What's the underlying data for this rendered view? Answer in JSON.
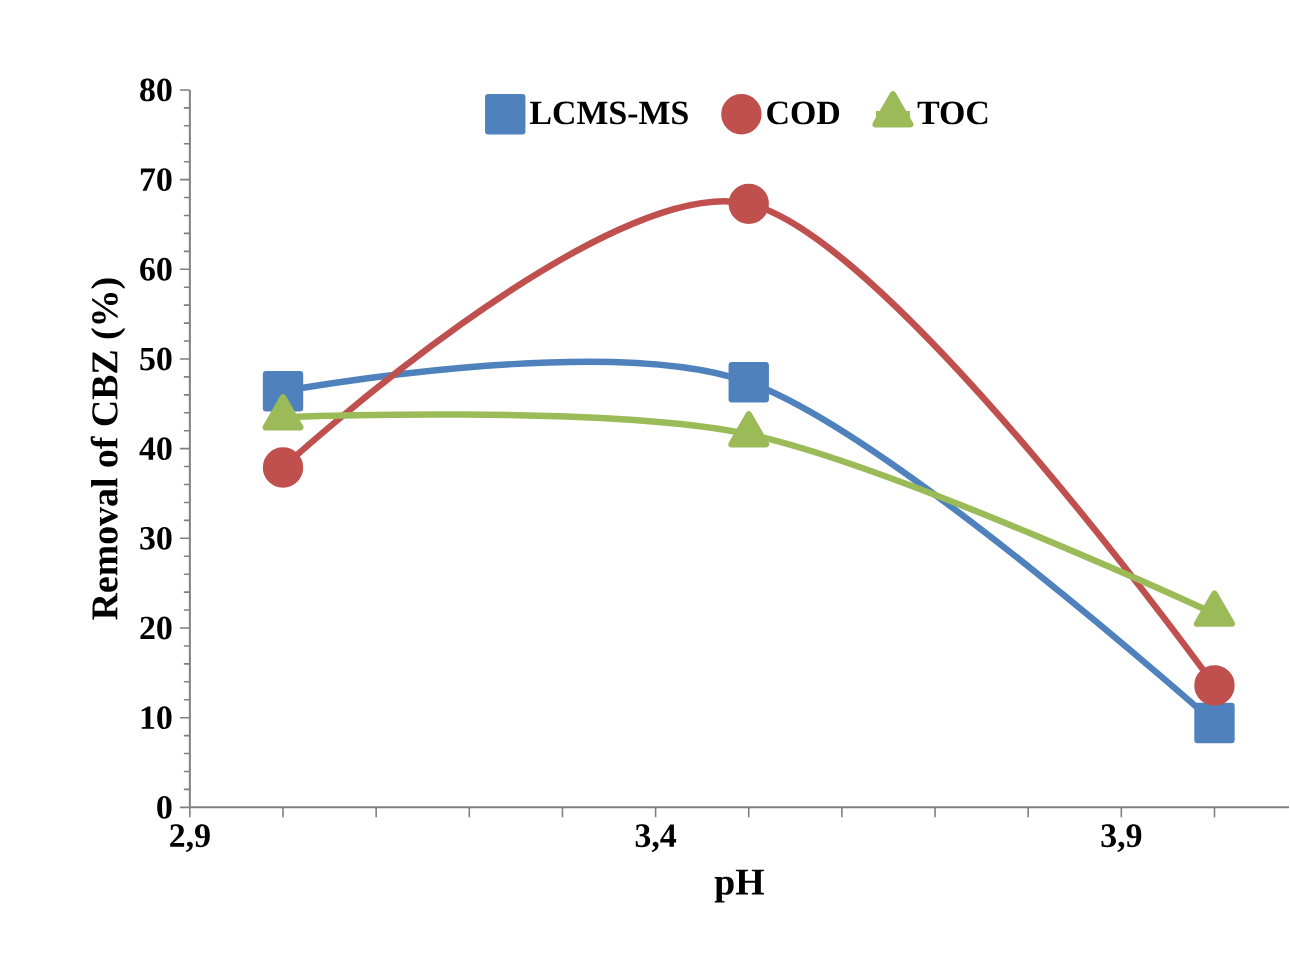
{
  "chart_data": {
    "type": "line",
    "xlabel": "pH",
    "ylabel": "Removal of CBZ (%)",
    "x": [
      3.0,
      3.5,
      4.0
    ],
    "series": [
      {
        "name": "LCMS-MS",
        "color": "#4f81bd",
        "marker": "square",
        "values": [
          46.4,
          47.4,
          9.4
        ]
      },
      {
        "name": "COD",
        "color": "#c0504d",
        "marker": "circle",
        "values": [
          37.9,
          67.3,
          13.6
        ]
      },
      {
        "name": "TOC",
        "color": "#9bbb59",
        "marker": "triangle",
        "values": [
          43.5,
          41.6,
          21.6
        ]
      }
    ],
    "xlim": [
      2.9,
      4.08
    ],
    "ylim": [
      0,
      80
    ],
    "xticks": [
      {
        "value": 2.9,
        "label": "2,9"
      },
      {
        "value": 3.0,
        "label": null
      },
      {
        "value": 3.1,
        "label": null
      },
      {
        "value": 3.2,
        "label": null
      },
      {
        "value": 3.3,
        "label": null
      },
      {
        "value": 3.4,
        "label": "3,4"
      },
      {
        "value": 3.5,
        "label": null
      },
      {
        "value": 3.6,
        "label": null
      },
      {
        "value": 3.7,
        "label": null
      },
      {
        "value": 3.8,
        "label": null
      },
      {
        "value": 3.9,
        "label": "3,9"
      },
      {
        "value": 4.0,
        "label": null
      }
    ],
    "yticks": [
      0,
      10,
      20,
      30,
      40,
      50,
      60,
      70,
      80
    ],
    "grid": false,
    "legend": "top",
    "line_style": "solid"
  }
}
